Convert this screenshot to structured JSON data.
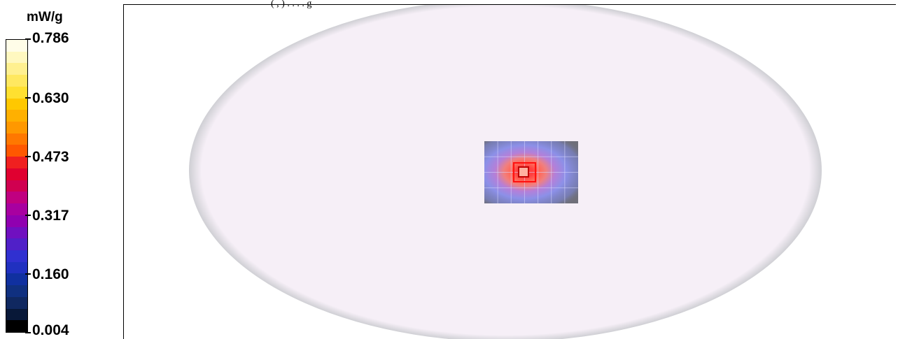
{
  "chart_data": {
    "type": "heatmap",
    "title": "",
    "top_caption_partial": "(  ,  ) . . . . g",
    "colorbar": {
      "unit": "mW/g",
      "ticks": [
        "0.786",
        "0.630",
        "0.473",
        "0.317",
        "0.160",
        "0.004"
      ],
      "range": [
        0.004,
        0.786
      ],
      "colors": [
        "#fffde8",
        "#fff8c0",
        "#fff090",
        "#ffe860",
        "#ffe030",
        "#ffc800",
        "#ffb000",
        "#ff9800",
        "#ff7800",
        "#ff5800",
        "#f02020",
        "#e00030",
        "#d00050",
        "#c00080",
        "#a800a0",
        "#9000b0",
        "#7010c0",
        "#5020c8",
        "#3030d0",
        "#2030c0",
        "#1030a0",
        "#103080",
        "#102860",
        "#081838",
        "#000000"
      ]
    },
    "phantom": {
      "shape": "ellipse",
      "fill": "#f6eff7",
      "edge": "#c8c8c8"
    },
    "scan_area": {
      "background": "#6e6e78",
      "grid_color": "#d8d8ff",
      "cols": 7,
      "rows": 4,
      "peak_value": 0.786,
      "peak_col": 2.5,
      "peak_row": 2.2
    }
  }
}
